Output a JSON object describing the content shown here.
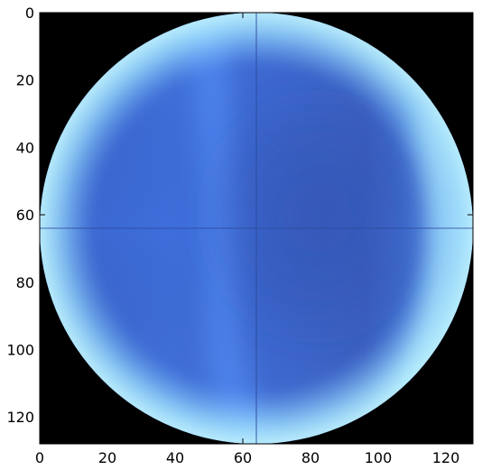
{
  "chart_data": {
    "type": "heatmap",
    "image_description_note": "",
    "x": {
      "ticks": [
        0,
        20,
        40,
        60,
        80,
        100,
        120
      ],
      "lim": [
        0,
        128
      ]
    },
    "y": {
      "ticks": [
        0,
        20,
        40,
        60,
        80,
        100,
        120
      ],
      "lim": [
        0,
        128
      ],
      "inverted": true
    },
    "grid": false,
    "image_grid_size": [
      128,
      128
    ],
    "disk": {
      "center": [
        64,
        64
      ],
      "radius": 64
    },
    "background_color": "#000000",
    "colors": {
      "base_blue": "#3f70df",
      "dark_blue": "#3559b9",
      "bright_band": "#5a95ff",
      "edge_highlight": "#cfffff"
    }
  }
}
